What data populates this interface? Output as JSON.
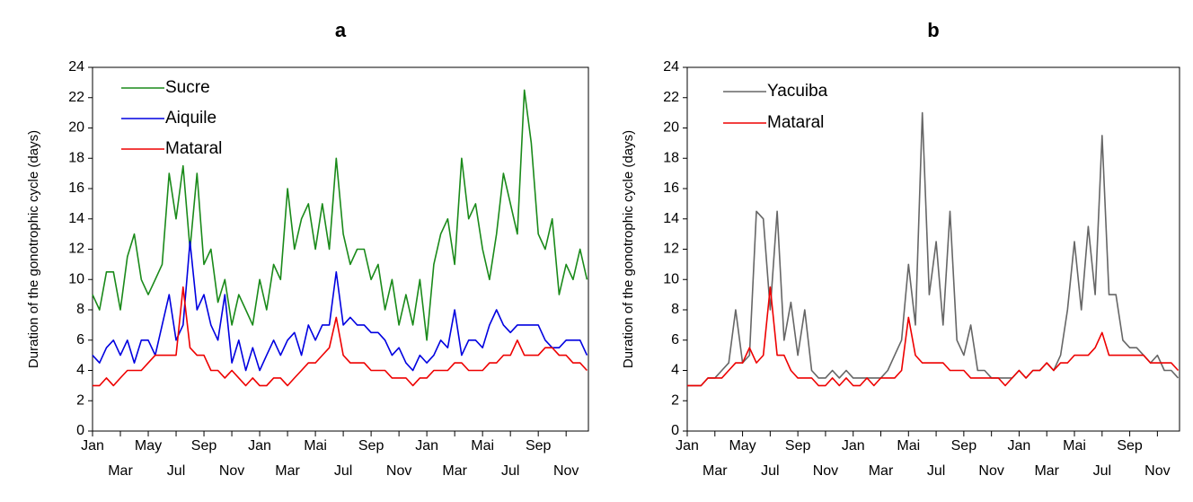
{
  "chart_data": [
    {
      "type": "line",
      "title": "a",
      "ylabel": "Duration of the gonotrophic cycle (days)",
      "x": [
        0,
        0.5,
        1,
        1.5,
        2,
        2.5,
        3,
        3.5,
        4,
        4.5,
        5,
        5.5,
        6,
        6.5,
        7,
        7.5,
        8,
        8.5,
        9,
        9.5,
        10,
        10.5,
        11,
        11.5,
        12,
        12.5,
        13,
        13.5,
        14,
        14.5,
        15,
        15.5,
        16,
        16.5,
        17,
        17.5,
        18,
        18.5,
        19,
        19.5,
        20,
        20.5,
        21,
        21.5,
        22,
        22.5,
        23,
        23.5,
        24,
        24.5,
        25,
        25.5,
        26,
        26.5,
        27,
        27.5,
        28,
        28.5,
        29,
        29.5,
        30,
        30.5,
        31,
        31.5,
        32,
        32.5,
        33,
        33.5,
        34,
        34.5,
        35,
        35.5
      ],
      "xlim": [
        0,
        35.6
      ],
      "xticks": [
        {
          "value": 0,
          "label": "Jan"
        },
        {
          "value": 2,
          "label": "Mar"
        },
        {
          "value": 4,
          "label": "May"
        },
        {
          "value": 6,
          "label": "Jul"
        },
        {
          "value": 8,
          "label": "Sep"
        },
        {
          "value": 10,
          "label": "Nov"
        },
        {
          "value": 12,
          "label": "Jan"
        },
        {
          "value": 14,
          "label": "Mar"
        },
        {
          "value": 16,
          "label": "Mai"
        },
        {
          "value": 18,
          "label": "Jul"
        },
        {
          "value": 20,
          "label": "Sep"
        },
        {
          "value": 22,
          "label": "Nov"
        },
        {
          "value": 24,
          "label": "Jan"
        },
        {
          "value": 26,
          "label": "Mar"
        },
        {
          "value": 28,
          "label": "Mai"
        },
        {
          "value": 30,
          "label": "Jul"
        },
        {
          "value": 32,
          "label": "Sep"
        },
        {
          "value": 34,
          "label": "Nov"
        }
      ],
      "ylim": [
        0,
        24
      ],
      "yticks": [
        0,
        2,
        4,
        6,
        8,
        10,
        12,
        14,
        16,
        18,
        20,
        22,
        24
      ],
      "legend": "upper left",
      "series": [
        {
          "name": "Sucre",
          "color": "#1a8a1a",
          "values": [
            9,
            8,
            10.5,
            10.5,
            8,
            11.5,
            13,
            10,
            9,
            10,
            11,
            17,
            14,
            17.5,
            12,
            17,
            11,
            12,
            8.5,
            10,
            7,
            9,
            8,
            7,
            10,
            8,
            11,
            10,
            16,
            12,
            14,
            15,
            12,
            15,
            12,
            18,
            13,
            11,
            12,
            12,
            10,
            11,
            8,
            10,
            7,
            9,
            7,
            10,
            6,
            11,
            13,
            14,
            11,
            18,
            14,
            15,
            12,
            10,
            13,
            17,
            15,
            13,
            22.5,
            19,
            13,
            12,
            14,
            9,
            11,
            10,
            12,
            10
          ]
        },
        {
          "name": "Aiquile",
          "color": "#0000e0",
          "values": [
            5,
            4.5,
            5.5,
            6,
            5,
            6,
            4.5,
            6,
            6,
            5,
            7,
            9,
            6,
            7,
            12.5,
            8,
            9,
            7,
            6,
            9,
            4.5,
            6,
            4,
            5.5,
            4,
            5,
            6,
            5,
            6,
            6.5,
            5,
            7,
            6,
            7,
            7,
            10.5,
            7,
            7.5,
            7,
            7,
            6.5,
            6.5,
            6,
            5,
            5.5,
            4.5,
            4,
            5,
            4.5,
            5,
            6,
            5.5,
            8,
            5,
            6,
            6,
            5.5,
            7,
            8,
            7,
            6.5,
            7,
            7,
            7,
            7,
            6,
            5.5,
            5.5,
            6,
            6,
            6,
            5
          ]
        },
        {
          "name": "Mataral",
          "color": "#ee0000",
          "values": [
            3,
            3,
            3.5,
            3,
            3.5,
            4,
            4,
            4,
            4.5,
            5,
            5,
            5,
            5,
            9.5,
            5.5,
            5,
            5,
            4,
            4,
            3.5,
            4,
            3.5,
            3,
            3.5,
            3,
            3,
            3.5,
            3.5,
            3,
            3.5,
            4,
            4.5,
            4.5,
            5,
            5.5,
            7.5,
            5,
            4.5,
            4.5,
            4.5,
            4,
            4,
            4,
            3.5,
            3.5,
            3.5,
            3,
            3.5,
            3.5,
            4,
            4,
            4,
            4.5,
            4.5,
            4,
            4,
            4,
            4.5,
            4.5,
            5,
            5,
            6,
            5,
            5,
            5,
            5.5,
            5.5,
            5,
            5,
            4.5,
            4.5,
            4
          ]
        }
      ]
    },
    {
      "type": "line",
      "title": "b",
      "ylabel": "Duration of the gonotrophic cycle (days)",
      "x": [
        0,
        0.5,
        1,
        1.5,
        2,
        2.5,
        3,
        3.5,
        4,
        4.5,
        5,
        5.5,
        6,
        6.5,
        7,
        7.5,
        8,
        8.5,
        9,
        9.5,
        10,
        10.5,
        11,
        11.5,
        12,
        12.5,
        13,
        13.5,
        14,
        14.5,
        15,
        15.5,
        16,
        16.5,
        17,
        17.5,
        18,
        18.5,
        19,
        19.5,
        20,
        20.5,
        21,
        21.5,
        22,
        22.5,
        23,
        23.5,
        24,
        24.5,
        25,
        25.5,
        26,
        26.5,
        27,
        27.5,
        28,
        28.5,
        29,
        29.5,
        30,
        30.5,
        31,
        31.5,
        32,
        32.5,
        33,
        33.5,
        34,
        34.5,
        35,
        35.5
      ],
      "xlim": [
        0,
        35.6
      ],
      "xticks": [
        {
          "value": 0,
          "label": "Jan"
        },
        {
          "value": 2,
          "label": "Mar"
        },
        {
          "value": 4,
          "label": "May"
        },
        {
          "value": 6,
          "label": "Jul"
        },
        {
          "value": 8,
          "label": "Sep"
        },
        {
          "value": 10,
          "label": "Nov"
        },
        {
          "value": 12,
          "label": "Jan"
        },
        {
          "value": 14,
          "label": "Mar"
        },
        {
          "value": 16,
          "label": "Mai"
        },
        {
          "value": 18,
          "label": "Jul"
        },
        {
          "value": 20,
          "label": "Sep"
        },
        {
          "value": 22,
          "label": "Nov"
        },
        {
          "value": 24,
          "label": "Jan"
        },
        {
          "value": 26,
          "label": "Mar"
        },
        {
          "value": 28,
          "label": "Mai"
        },
        {
          "value": 30,
          "label": "Jul"
        },
        {
          "value": 32,
          "label": "Sep"
        },
        {
          "value": 34,
          "label": "Nov"
        }
      ],
      "ylim": [
        0,
        24
      ],
      "yticks": [
        0,
        2,
        4,
        6,
        8,
        10,
        12,
        14,
        16,
        18,
        20,
        22,
        24
      ],
      "legend": "upper left",
      "series": [
        {
          "name": "Yacuiba",
          "color": "#666666",
          "values": [
            3,
            3,
            3,
            3.5,
            3.5,
            4,
            4.5,
            8,
            4.5,
            5,
            14.5,
            14,
            8,
            14.5,
            6,
            8.5,
            5,
            8,
            4,
            3.5,
            3.5,
            4,
            3.5,
            4,
            3.5,
            3.5,
            3.5,
            3.5,
            3.5,
            4,
            5,
            6,
            11,
            7,
            21,
            9,
            12.5,
            7,
            14.5,
            6,
            5,
            7,
            4,
            4,
            3.5,
            3.5,
            3.5,
            3.5,
            4,
            3.5,
            4,
            4,
            4.5,
            4,
            5,
            8,
            12.5,
            8,
            13.5,
            9,
            19.5,
            9,
            9,
            6,
            5.5,
            5.5,
            5,
            4.5,
            5,
            4,
            4,
            3.5
          ]
        },
        {
          "name": "Mataral",
          "color": "#ee0000",
          "values": [
            3,
            3,
            3,
            3.5,
            3.5,
            3.5,
            4,
            4.5,
            4.5,
            5.5,
            4.5,
            5,
            9.5,
            5,
            5,
            4,
            3.5,
            3.5,
            3.5,
            3,
            3,
            3.5,
            3,
            3.5,
            3,
            3,
            3.5,
            3,
            3.5,
            3.5,
            3.5,
            4,
            7.5,
            5,
            4.5,
            4.5,
            4.5,
            4.5,
            4,
            4,
            4,
            3.5,
            3.5,
            3.5,
            3.5,
            3.5,
            3,
            3.5,
            4,
            3.5,
            4,
            4,
            4.5,
            4,
            4.5,
            4.5,
            5,
            5,
            5,
            5.5,
            6.5,
            5,
            5,
            5,
            5,
            5,
            5,
            4.5,
            4.5,
            4.5,
            4.5,
            4
          ]
        }
      ]
    }
  ]
}
